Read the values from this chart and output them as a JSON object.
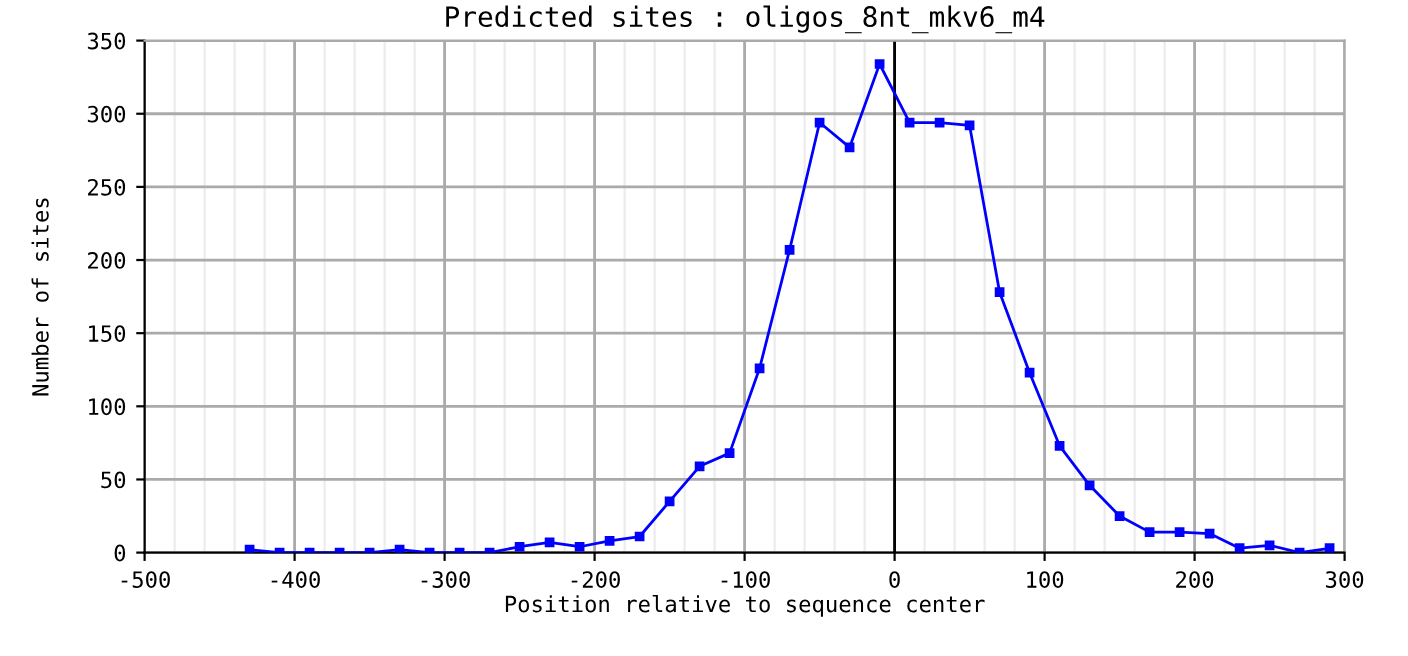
{
  "chart_data": {
    "type": "line",
    "title": "Predicted sites : oligos_8nt_mkv6_m4",
    "xlabel": "Position relative to sequence center",
    "ylabel": "Number of sites",
    "x": [
      -430,
      -410,
      -390,
      -370,
      -350,
      -330,
      -310,
      -290,
      -270,
      -250,
      -230,
      -210,
      -190,
      -170,
      -150,
      -130,
      -110,
      -90,
      -70,
      -50,
      -30,
      -10,
      10,
      30,
      50,
      70,
      90,
      110,
      130,
      150,
      170,
      190,
      210,
      230,
      250,
      270,
      290
    ],
    "series": [
      {
        "color": "#0000ff",
        "values": [
          2,
          0,
          0,
          0,
          0,
          2,
          0,
          0,
          0,
          4,
          7,
          4,
          8,
          11,
          35,
          59,
          68,
          126,
          207,
          294,
          277,
          334,
          294,
          294,
          292,
          178,
          123,
          73,
          46,
          25,
          14,
          14,
          13,
          3,
          5,
          0,
          3
        ]
      }
    ],
    "xlim": [
      -500,
      300
    ],
    "xticks": [
      -500,
      -400,
      -300,
      -200,
      -100,
      0,
      100,
      200,
      300
    ],
    "ylim": [
      0,
      350
    ],
    "yticks": [
      0,
      50,
      100,
      150,
      200,
      250,
      300,
      350
    ],
    "grid": true,
    "marker": "square",
    "line_style": "solid",
    "ref_lines": [
      {
        "axis": "x",
        "value": 0,
        "color": "#000000"
      }
    ]
  }
}
